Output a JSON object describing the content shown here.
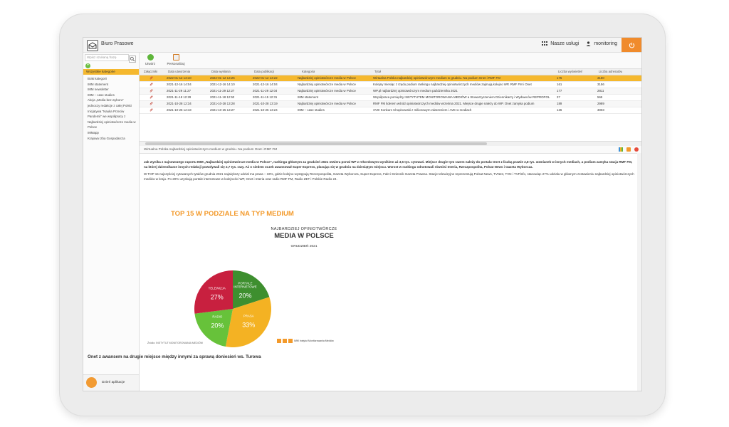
{
  "app": {
    "title": "Biuro Prasowe"
  },
  "topbar": {
    "services_label": "Nasze usługi",
    "user_label": "monitoring"
  },
  "sidebar": {
    "search_placeholder": "Wpisz szukaną frazę",
    "all_categories": "Wszystkie kategorie",
    "categories": [
      "Brak kategorii",
      "IMM statement",
      "IMM newsletter",
      "IMM – case studies",
      "Akcja „Media bez wyboru”",
      "jednoczy redakcje z całej Polski",
      "Inicjatywa \"Nauka Przeciw Pandemii\" we współpracy z Najbardziej opiniotwórcze media w Polsce",
      "IMMapp",
      "Krajowa Izba Gospodarcza"
    ],
    "footer_label": "Dzień aplikacje"
  },
  "toolbar": {
    "create_label": "Utwórz",
    "personalize_label": "Personalizuj"
  },
  "table": {
    "columns": [
      "Załączniki",
      "Data utworzenia",
      "Data wysłania",
      "Data publikacji",
      "Kategoria",
      "Tytuł",
      "Liczba wyświetleń",
      "Liczba adresatów"
    ],
    "rows": [
      {
        "created": "2022-01-12 13:10",
        "sent": "2022-01-12 13:26",
        "published": "2022-01-12 13:22",
        "category": "Najbardziej opiniotwórcze media w Polsce",
        "title": "Wirtualna Polska najbardziej opiniotwórczym medium w grudniu. Na podium Onet i RMF FM",
        "views": "175",
        "recipients": "3160"
      },
      {
        "created": "2021-12-16 14:04",
        "sent": "2021-12-16 14:10",
        "published": "2021-12-16 14:04",
        "category": "Najbardziej opiniotwórcze media w Polsce",
        "title": "Kolejny miesiąc z rzędu podium rankingu najbardziej opiniotwórczych mediów zajmują kolejno WP, RMF FM i Onet",
        "views": "161",
        "recipients": "3156"
      },
      {
        "created": "2021-11-29 11:27",
        "sent": "2021-11-29 12:27",
        "published": "2021-11-29 12:04",
        "category": "Najbardziej opiniotwórcze media w Polsce",
        "title": "WP.pl najbardziej opiniotwórczym medium października 2021",
        "views": "177",
        "recipients": "2811"
      },
      {
        "created": "2021-11-18 12:29",
        "sent": "2021-11-18 12:50",
        "published": "2021-11-15 12:31",
        "category": "IMM statement",
        "title": "Współpraca pomiędzy INSTYTUTEM MONITOROWANIA MEDIÓW a Stowarzyszeniem Dziennikarzy i Wydawców REPROPOL",
        "views": "37",
        "recipients": "565"
      },
      {
        "created": "2021-10-28 12:34",
        "sent": "2021-10-28 13:28",
        "published": "2021-10-28 13:19",
        "category": "Najbardziej opiniotwórcze media w Polsce",
        "title": "RMF FM liderem wśród opiniotwórczych mediów września 2021. Miejsce drugie należy do WP. Onet zamyka podium",
        "views": "189",
        "recipients": "2989"
      },
      {
        "created": "2021-10-25 12:43",
        "sent": "2021-10-25 13:27",
        "published": "2021-10-25 13:24",
        "category": "IMM – case studies",
        "title": "XVIII Konkurs Chopinowski z milionowym zdarzeniem i AVE w mediach",
        "views": "136",
        "recipients": "3003"
      }
    ]
  },
  "preview": {
    "subject": "Wirtualna Polska najbardziej opiniotwórczym medium w grudniu. Na podium Onet i RMF FM",
    "para1": "Jak wynika z najnowszego raportu IMM „Najbardziej opiniotwórcze media w Polsce”, rankingu głównym za grudzień 2021 otwiera portal WP z rekordowym wynikiem aż 3,5 tys. cytowań. Miejsce drugie tym razem należy do portalu Onet z liczbą prawie 2,8 tys. wzmianek w innych mediach, a podium zamyka stacja RMF FM, na której dziennikarze innych redakcji powoływali się 2,7 tys. razy. Aż o siedem oczek awansował Super Express, plasując się w grudniu na dziesiątym miejscu. Wzrost w rankingu odnotowali również Interia, Rzeczpospolita, Polsat News i Gazeta Wyborcza.",
    "para2": "W TOP 15 najczęściej cytowanych tytułów grudnia 2021 największy udział ma prasa – 33%, gdzie kolejno występują Rzeczpospolita, Gazeta Wyborcza, Super Express, Fakt i Dziennik Gazeta Prawna. Stacje telewizyjne reprezentują Polsat News, TVN24, TVN i TVPinfo, stanowiąc 27% udziału w głównym zestawieniu najbardziej opiniotwórczych mediów w kraju. Po 20% uzyskują portale internetowe w kolejności WP, Onet i Interia oraz radio RMF FM, Radio ZET i Polskie Radio 24.",
    "headline": "Onet z awansem na drugie miejsce między innymi za sprawą doniesień ws. Turowa"
  },
  "infographic": {
    "title": "TOP 15 W PODZIALE NA TYP MEDIUM",
    "sub_a": "NAJBARDZIEJ OPINIOTWÓRCZE",
    "sub_b": "MEDIA W POLSCE",
    "sub_c": "GRUDZIEŃ 2021",
    "source": "Źródło: INSTYTUT MONITOROWANIA MEDIÓW",
    "brand": "IMM Instytut Monitorowania Mediów"
  },
  "chart_data": {
    "type": "pie",
    "title": "TOP 15 W PODZIALE NA TYP MEDIUM",
    "categories": [
      "PORTALE INTERNETOWE",
      "PRASA",
      "RADIO",
      "TELEWIZJA"
    ],
    "values": [
      20,
      33,
      20,
      27
    ],
    "colors": [
      "#3e8f2f",
      "#f4b223",
      "#67c23a",
      "#c8203f"
    ]
  },
  "colors": {
    "accent": "#f5b82e",
    "orange": "#f08b2c"
  }
}
